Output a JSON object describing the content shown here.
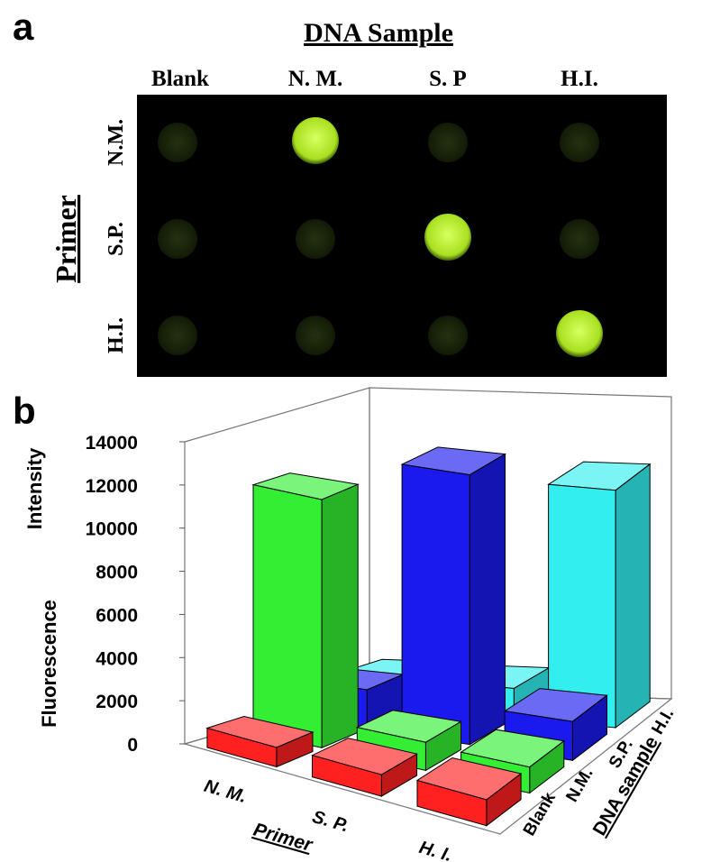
{
  "panel_a": {
    "label": "a",
    "title": "DNA Sample",
    "columns": [
      "Blank",
      "N. M.",
      "S. P",
      "H.I."
    ],
    "rows": [
      "N.M.",
      "S.P.",
      "H.I."
    ],
    "row_title": "Primer"
  },
  "chart_data": {
    "type": "bar3d",
    "panel_label": "b",
    "y_label_lines": [
      "Fluorescence",
      "Intensity"
    ],
    "x_label": "Primer",
    "depth_label": "DNA sample",
    "categories": [
      "N. M.",
      "S. P.",
      "H. I."
    ],
    "series": [
      {
        "name": "Blank",
        "color": "#ff2020",
        "values": [
          900,
          1000,
          1200
        ]
      },
      {
        "name": "N.M.",
        "color": "#33ee33",
        "values": [
          11500,
          1300,
          1200
        ]
      },
      {
        "name": "S.P.",
        "color": "#1a1aee",
        "values": [
          1800,
          12500,
          1800
        ]
      },
      {
        "name": "H.I.",
        "color": "#33eeee",
        "values": [
          1500,
          1400,
          11000
        ]
      }
    ],
    "ylim": [
      0,
      14000
    ],
    "yticks": [
      0,
      2000,
      4000,
      6000,
      8000,
      10000,
      12000,
      14000
    ],
    "grid": false
  }
}
